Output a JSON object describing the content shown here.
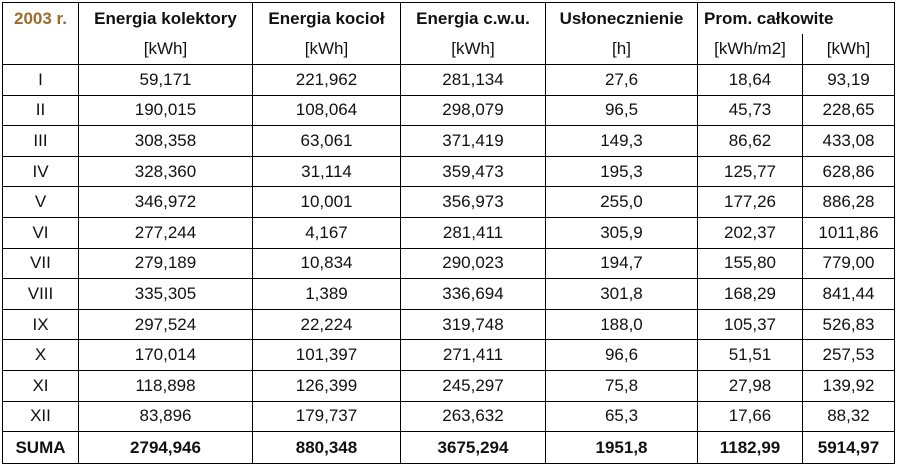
{
  "table": {
    "year_label": "2003 r.",
    "headers": [
      "Energia kolektory",
      "Energia kocioł",
      "Energia c.w.u.",
      "Usłonecznienie",
      "Prom. całkowite"
    ],
    "units": [
      "[kWh]",
      "[kWh]",
      "[kWh]",
      "[h]",
      "[kWh/m2]",
      "[kWh]"
    ],
    "rows": [
      {
        "month": "I",
        "cells": [
          "59,171",
          "221,962",
          "281,134",
          "27,6",
          "18,64",
          "93,19"
        ]
      },
      {
        "month": "II",
        "cells": [
          "190,015",
          "108,064",
          "298,079",
          "96,5",
          "45,73",
          "228,65"
        ]
      },
      {
        "month": "III",
        "cells": [
          "308,358",
          "63,061",
          "371,419",
          "149,3",
          "86,62",
          "433,08"
        ]
      },
      {
        "month": "IV",
        "cells": [
          "328,360",
          "31,114",
          "359,473",
          "195,3",
          "125,77",
          "628,86"
        ]
      },
      {
        "month": "V",
        "cells": [
          "346,972",
          "10,001",
          "356,973",
          "255,0",
          "177,26",
          "886,28"
        ]
      },
      {
        "month": "VI",
        "cells": [
          "277,244",
          "4,167",
          "281,411",
          "305,9",
          "202,37",
          "1011,86"
        ]
      },
      {
        "month": "VII",
        "cells": [
          "279,189",
          "10,834",
          "290,023",
          "194,7",
          "155,80",
          "779,00"
        ]
      },
      {
        "month": "VIII",
        "cells": [
          "335,305",
          "1,389",
          "336,694",
          "301,8",
          "168,29",
          "841,44"
        ]
      },
      {
        "month": "IX",
        "cells": [
          "297,524",
          "22,224",
          "319,748",
          "188,0",
          "105,37",
          "526,83"
        ]
      },
      {
        "month": "X",
        "cells": [
          "170,014",
          "101,397",
          "271,411",
          "96,6",
          "51,51",
          "257,53"
        ]
      },
      {
        "month": "XI",
        "cells": [
          "118,898",
          "126,399",
          "245,297",
          "75,8",
          "27,98",
          "139,92"
        ]
      },
      {
        "month": "XII",
        "cells": [
          "83,896",
          "179,737",
          "263,632",
          "65,3",
          "17,66",
          "88,32"
        ]
      }
    ],
    "total": {
      "label": "SUMA",
      "cells": [
        "2794,946",
        "880,348",
        "3675,294",
        "1951,8",
        "1182,99",
        "5914,97"
      ]
    }
  }
}
